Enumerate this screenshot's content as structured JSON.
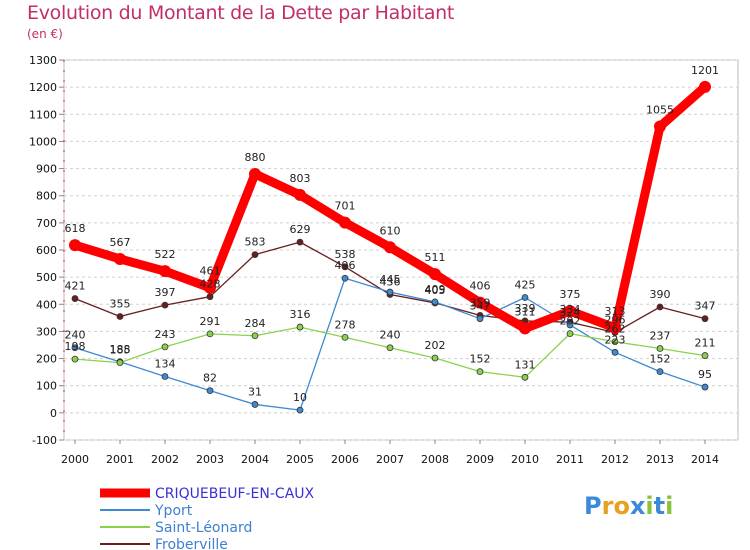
{
  "title": "Evolution du Montant de la Dette par Habitant",
  "unit": "(en €)",
  "brand": "Proxiti",
  "chart_data": {
    "type": "line",
    "title": "Evolution du Montant de la Dette par Habitant",
    "ylabel": "(en €)",
    "xlabel": "",
    "x": [
      "2000",
      "2001",
      "2002",
      "2003",
      "2004",
      "2005",
      "2006",
      "2007",
      "2008",
      "2009",
      "2010",
      "2011",
      "2012",
      "2013",
      "2014"
    ],
    "ylim": [
      -100,
      1300
    ],
    "yticks": [
      -100,
      0,
      100,
      200,
      300,
      400,
      500,
      600,
      700,
      800,
      900,
      1000,
      1100,
      1200,
      1300
    ],
    "grid": "horizontal dashed",
    "legend_position": "bottom-left",
    "series": [
      {
        "name": "CRIQUEBEUF-EN-CAUX",
        "color": "#ff0000",
        "values": [
          618,
          567,
          522,
          461,
          880,
          803,
          701,
          610,
          511,
          406,
          311,
          375,
          313,
          1055,
          1201
        ]
      },
      {
        "name": "Yport",
        "color": "#3e8ad3",
        "values": [
          240,
          188,
          134,
          82,
          31,
          10,
          496,
          445,
          409,
          347,
          425,
          324,
          223,
          152,
          95
        ]
      },
      {
        "name": "Saint-Léonard",
        "color": "#8ad24b",
        "values": [
          198,
          185,
          243,
          291,
          284,
          316,
          278,
          240,
          202,
          152,
          131,
          292,
          262,
          237,
          211
        ]
      },
      {
        "name": "Froberville",
        "color": "#6b1d1d",
        "values": [
          421,
          355,
          397,
          428,
          583,
          629,
          538,
          436,
          405,
          359,
          339,
          334,
          296,
          390,
          347
        ]
      }
    ]
  }
}
